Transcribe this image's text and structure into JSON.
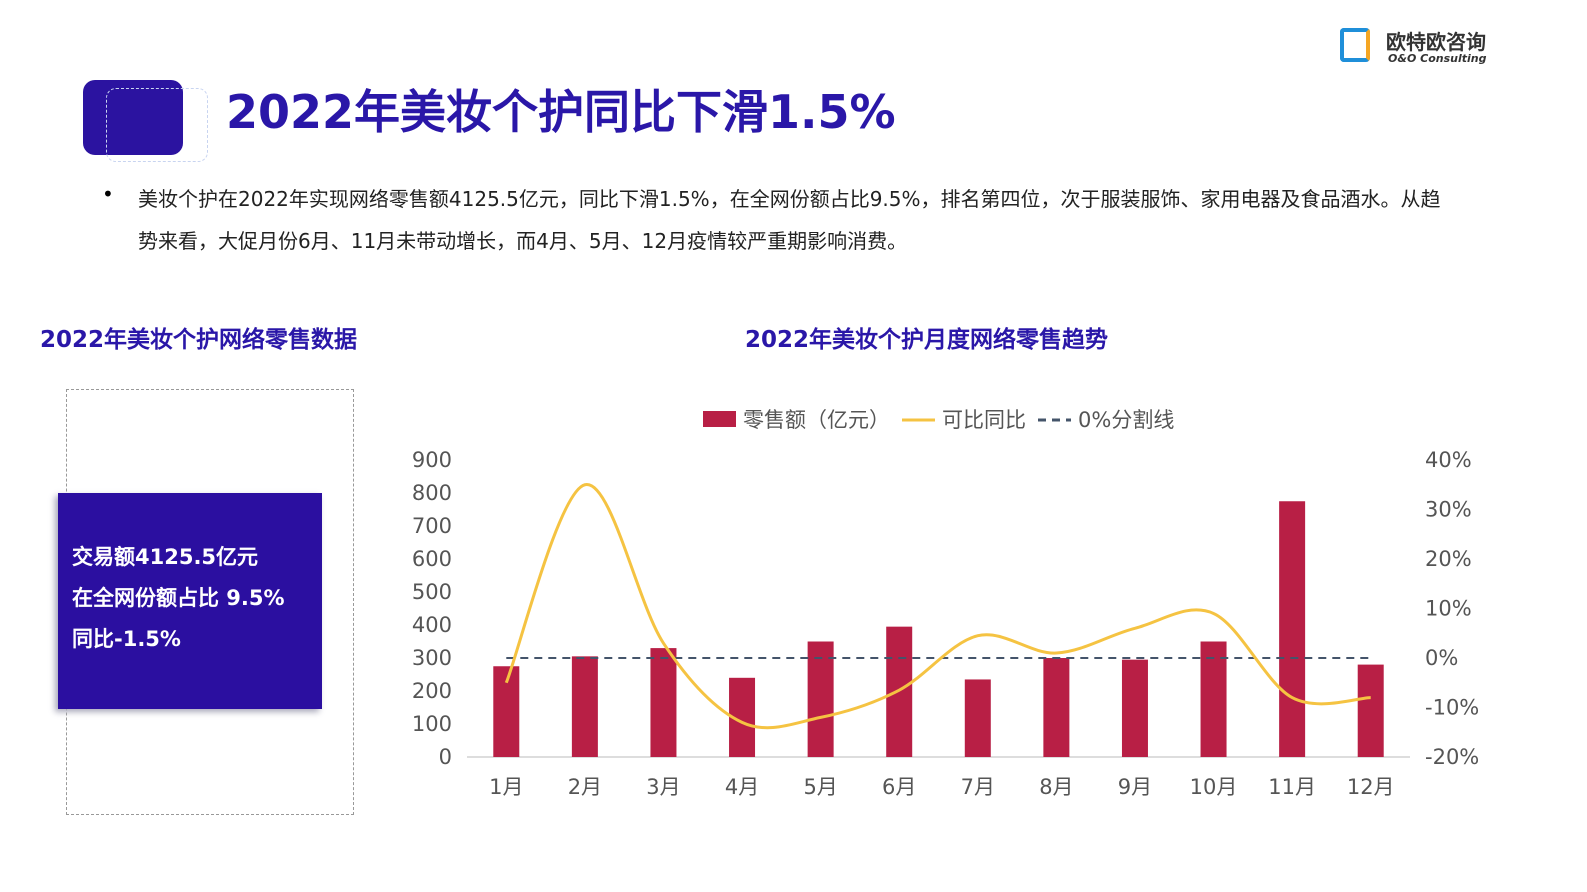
{
  "header": {
    "title": "2022年美妆个护同比下滑1.5%",
    "logo": {
      "name": "欧特欧咨询",
      "name_en": "O&O Consulting"
    }
  },
  "bullet": "美妆个护在2022年实现网络零售额4125.5亿元，同比下滑1.5%，在全网份额占比9.5%，排名第四位，次于服装服饰、家用电器及食品酒水。从趋势来看，大促月份6月、11月未带动增长，而4月、5月、12月疫情较严重期影响消费。",
  "left_panel": {
    "title": "2022年美妆个护网络零售数据",
    "lines": [
      "交易额4125.5亿元",
      "在全网份额占比 9.5%",
      "同比-1.5%"
    ]
  },
  "chart_data": {
    "type": "combo",
    "title": "2022年美妆个护月度网络零售趋势",
    "categories": [
      "1月",
      "2月",
      "3月",
      "4月",
      "5月",
      "6月",
      "7月",
      "8月",
      "9月",
      "10月",
      "11月",
      "12月"
    ],
    "series": [
      {
        "name": "零售额（亿元）",
        "type": "bar",
        "color": "#b81f45",
        "values": [
          275,
          305,
          330,
          240,
          350,
          395,
          235,
          300,
          295,
          350,
          775,
          280
        ]
      },
      {
        "name": "可比同比",
        "type": "line",
        "axis": "y2",
        "color": "#f5c342",
        "values": [
          -5,
          35,
          3,
          -13,
          -12,
          -6.5,
          4.5,
          1,
          6,
          9,
          -8,
          -8
        ]
      },
      {
        "name": "0%分割线",
        "type": "dashed",
        "axis": "y2",
        "color": "#44546a",
        "values": [
          0,
          0,
          0,
          0,
          0,
          0,
          0,
          0,
          0,
          0,
          0,
          0
        ]
      }
    ],
    "ylim": [
      0,
      900
    ],
    "yticks": [
      0,
      100,
      200,
      300,
      400,
      500,
      600,
      700,
      800,
      900
    ],
    "y2lim": [
      -20,
      40
    ],
    "y2ticks": [
      {
        "value": -20,
        "label": "-20%"
      },
      {
        "value": -10,
        "label": "-10%"
      },
      {
        "value": 0,
        "label": "0%"
      },
      {
        "value": 10,
        "label": "10%"
      },
      {
        "value": 20,
        "label": "20%"
      },
      {
        "value": 30,
        "label": "30%"
      },
      {
        "value": 40,
        "label": "40%"
      }
    ]
  }
}
